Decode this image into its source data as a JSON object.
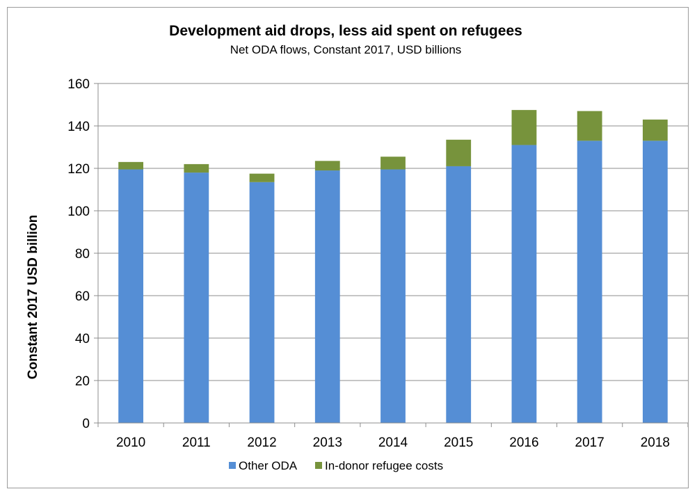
{
  "chart_data": {
    "type": "bar",
    "stacked": true,
    "title": "Development aid drops, less aid spent on refugees",
    "subtitle": "Net ODA flows, Constant 2017,  USD billions",
    "xlabel": "",
    "ylabel": "Constant 2017 USD billion",
    "ylim": [
      0,
      160
    ],
    "yticks": [
      0,
      20,
      40,
      60,
      80,
      100,
      120,
      140,
      160
    ],
    "grid": true,
    "legend_position": "bottom",
    "categories": [
      "2010",
      "2011",
      "2012",
      "2013",
      "2014",
      "2015",
      "2016",
      "2017",
      "2018"
    ],
    "series": [
      {
        "name": "Other ODA",
        "color": "#558ED5",
        "values": [
          119.5,
          118,
          113.5,
          119,
          119.5,
          121,
          131,
          133,
          133
        ]
      },
      {
        "name": "In-donor refugee costs",
        "color": "#77933C",
        "values": [
          3.5,
          4,
          4,
          4.5,
          6,
          12.5,
          16.5,
          14,
          10
        ]
      }
    ]
  }
}
